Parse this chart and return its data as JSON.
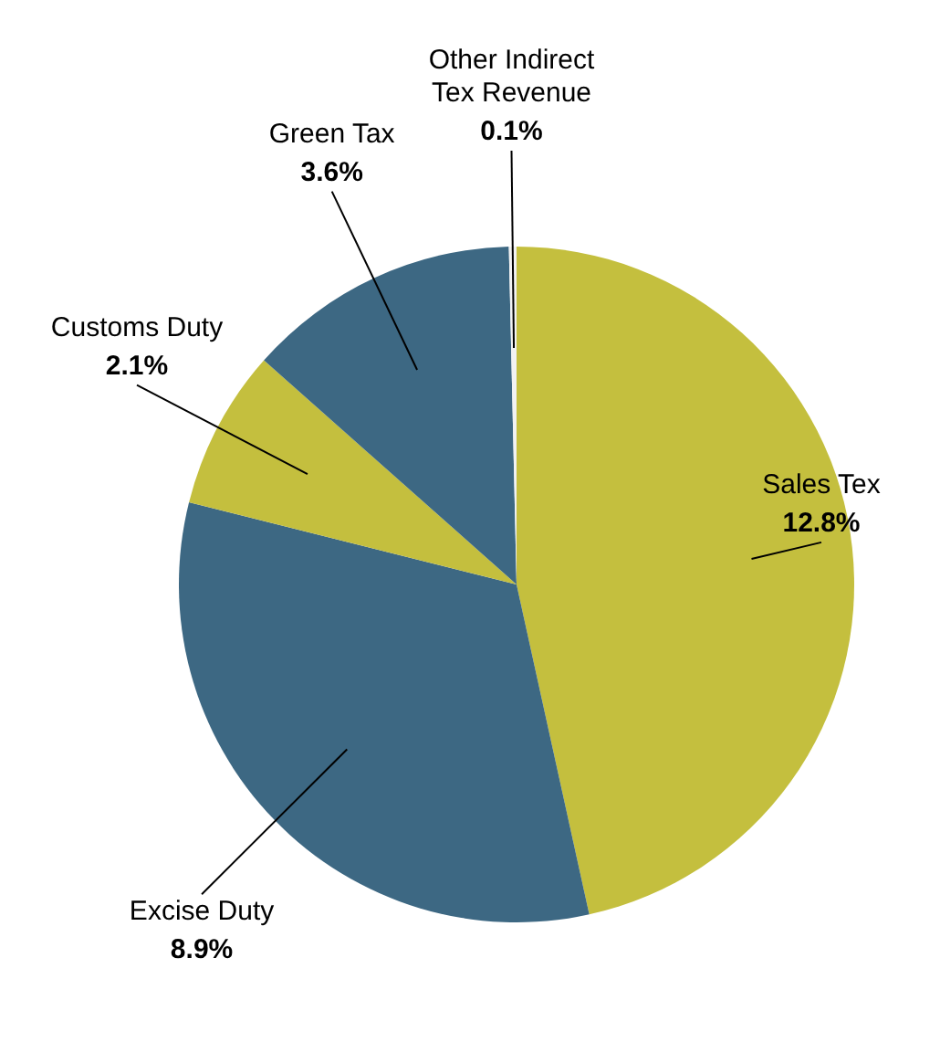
{
  "chart_data": {
    "type": "pie",
    "categories": [
      "Sales Tex",
      "Excise Duty",
      "Customs Duty",
      "Green Tax",
      "Other Indirect\nTex Revenue"
    ],
    "values": [
      12.8,
      8.9,
      2.1,
      3.6,
      0.1
    ],
    "value_labels": [
      "12.8%",
      "8.9%",
      "2.1%",
      "3.6%",
      "0.1%"
    ],
    "colors": [
      "#c4bf3e",
      "#3d6883",
      "#c4bf3e",
      "#3d6883",
      "#f2f2f2"
    ]
  }
}
